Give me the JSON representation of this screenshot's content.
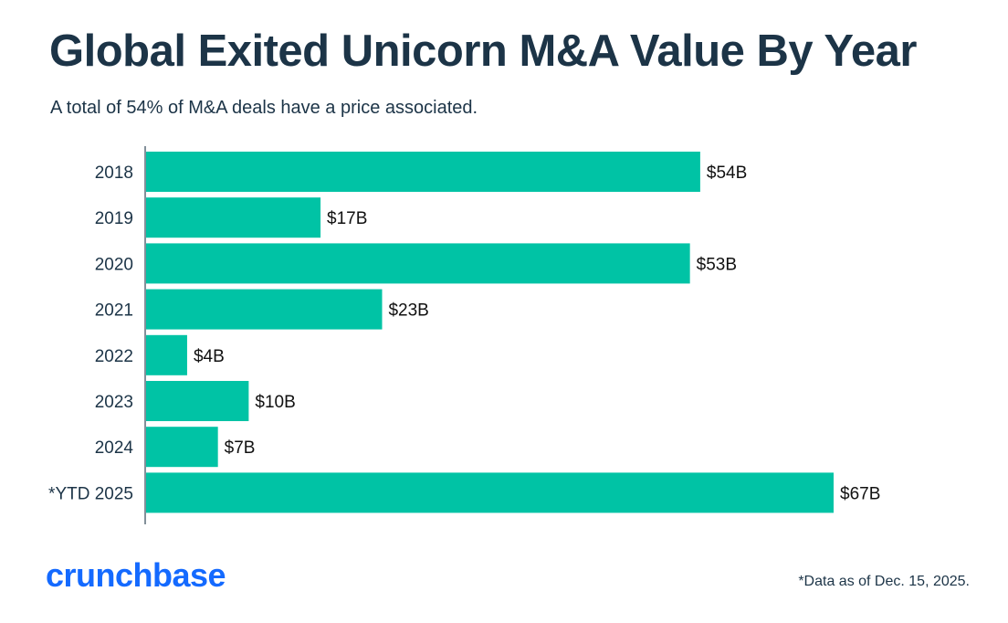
{
  "header": {
    "title": "Global Exited Unicorn M&A Value By Year",
    "subtitle": "A total of 54% of M&A deals have a price associated."
  },
  "footer": {
    "logo_text": "crunchbase",
    "footnote": "*Data as of Dec. 15, 2025."
  },
  "colors": {
    "bar": "#00c3a5",
    "title": "#1c3447",
    "logo": "#146aff",
    "axis": "#1c3447",
    "value_label": "#111111"
  },
  "chart_data": {
    "type": "bar",
    "orientation": "horizontal",
    "title": "Global Exited Unicorn M&A Value By Year",
    "subtitle": "A total of 54% of M&A deals have a price associated.",
    "xlabel": "",
    "ylabel": "",
    "unit": "USD billions",
    "categories": [
      "2018",
      "2019",
      "2020",
      "2021",
      "2022",
      "2023",
      "2024",
      "*YTD 2025"
    ],
    "values": [
      54,
      17,
      53,
      23,
      4,
      10,
      7,
      67
    ],
    "data_labels": [
      "$54B",
      "$17B",
      "$53B",
      "$23B",
      "$4B",
      "$10B",
      "$7B",
      "$67B"
    ],
    "xlim": [
      0,
      67
    ],
    "grid": false,
    "legend": "none"
  }
}
